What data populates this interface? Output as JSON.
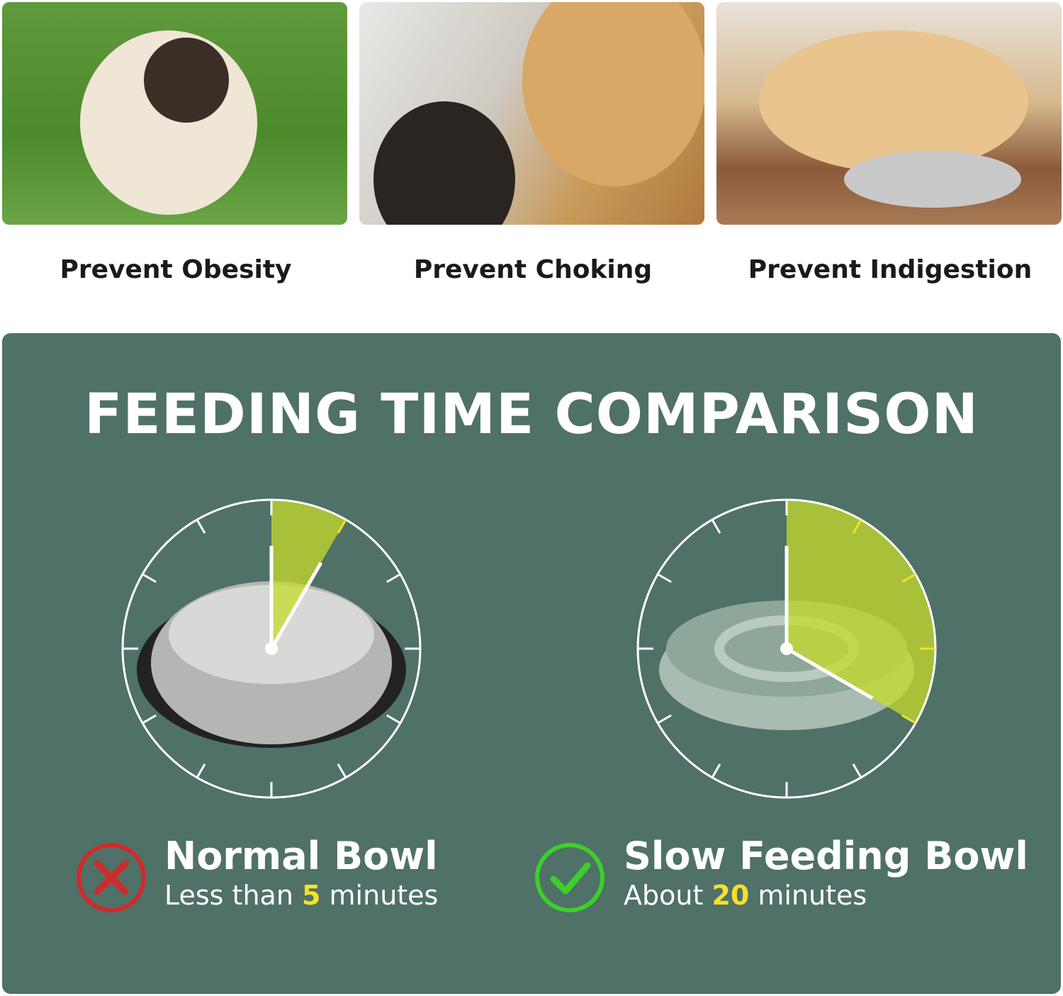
{
  "benefits": [
    {
      "label": "Prevent Obesity"
    },
    {
      "label": "Prevent Choking"
    },
    {
      "label": "Prevent Indigestion"
    }
  ],
  "title": "FEEDING TIME COMPARISON",
  "normal": {
    "name": "Normal Bowl",
    "prefix": "Less than ",
    "minutes": "5",
    "suffix": " minutes",
    "icon": "x-circle-icon",
    "icon_color": "#d12a2a"
  },
  "slow": {
    "name": "Slow Feeding Bowl",
    "prefix": "About ",
    "minutes": "20",
    "suffix": " minutes",
    "icon": "check-circle-icon",
    "icon_color": "#3ecf2a"
  },
  "colors": {
    "panel": "#4f7167",
    "sector": "#c6dc2a",
    "highlight": "#f5e12a"
  }
}
